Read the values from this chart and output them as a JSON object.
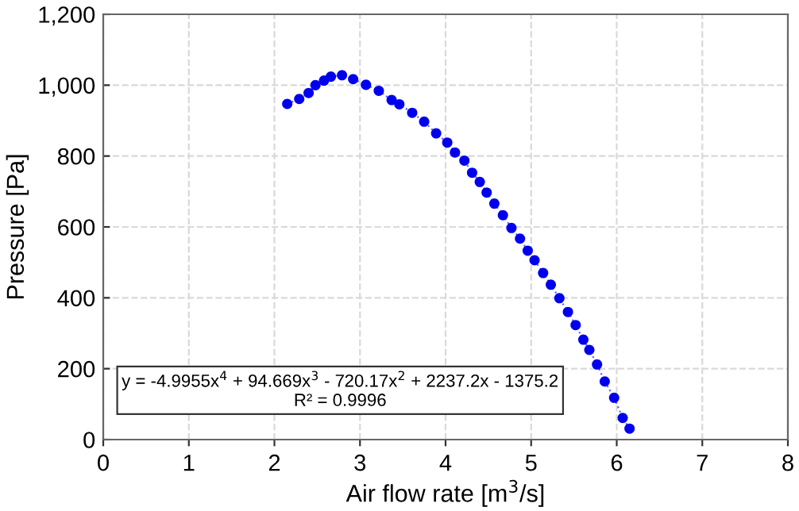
{
  "chart_data": {
    "type": "line",
    "xlabel": "Air flow rate [m$^{3}$/s]",
    "ylabel": "Pressure [Pa]",
    "xlim": [
      0,
      8
    ],
    "xticks": [
      0,
      1,
      2,
      3,
      4,
      5,
      6,
      7,
      8
    ],
    "ylim": [
      0,
      1200
    ],
    "yticks": [
      {
        "value": 0,
        "label": "0"
      },
      {
        "value": 200,
        "label": "200"
      },
      {
        "value": 400,
        "label": "400"
      },
      {
        "value": 600,
        "label": "600"
      },
      {
        "value": 800,
        "label": "800"
      },
      {
        "value": 1000,
        "label": "1,000"
      },
      {
        "value": 1200,
        "label": "1,200"
      }
    ],
    "grid": true,
    "marker": "circle",
    "line_style": "dotted",
    "series": [
      {
        "color": "#0000ee",
        "x": [
          2.15,
          2.29,
          2.4,
          2.48,
          2.58,
          2.66,
          2.79,
          2.92,
          3.07,
          3.22,
          3.37,
          3.46,
          3.61,
          3.75,
          3.89,
          4.02,
          4.11,
          4.22,
          4.31,
          4.4,
          4.48,
          4.57,
          4.67,
          4.77,
          4.87,
          4.96,
          5.04,
          5.14,
          5.23,
          5.33,
          5.43,
          5.52,
          5.61,
          5.68,
          5.77,
          5.86,
          5.97,
          6.07,
          6.15
        ],
        "values": [
          947,
          961,
          978,
          1000,
          1013,
          1024,
          1028,
          1017,
          1001,
          984,
          958,
          946,
          922,
          897,
          864,
          838,
          810,
          787,
          753,
          727,
          697,
          666,
          633,
          597,
          567,
          533,
          506,
          470,
          437,
          399,
          360,
          323,
          282,
          253,
          212,
          164,
          118,
          61,
          31
        ]
      }
    ],
    "annotations": [
      "y = -4.9955x$^{4}$ + 94.669x$^{3}$ - 720.17x$^{2}$ + 2237.2x - 1375.2\nR² = 0.9996"
    ]
  }
}
